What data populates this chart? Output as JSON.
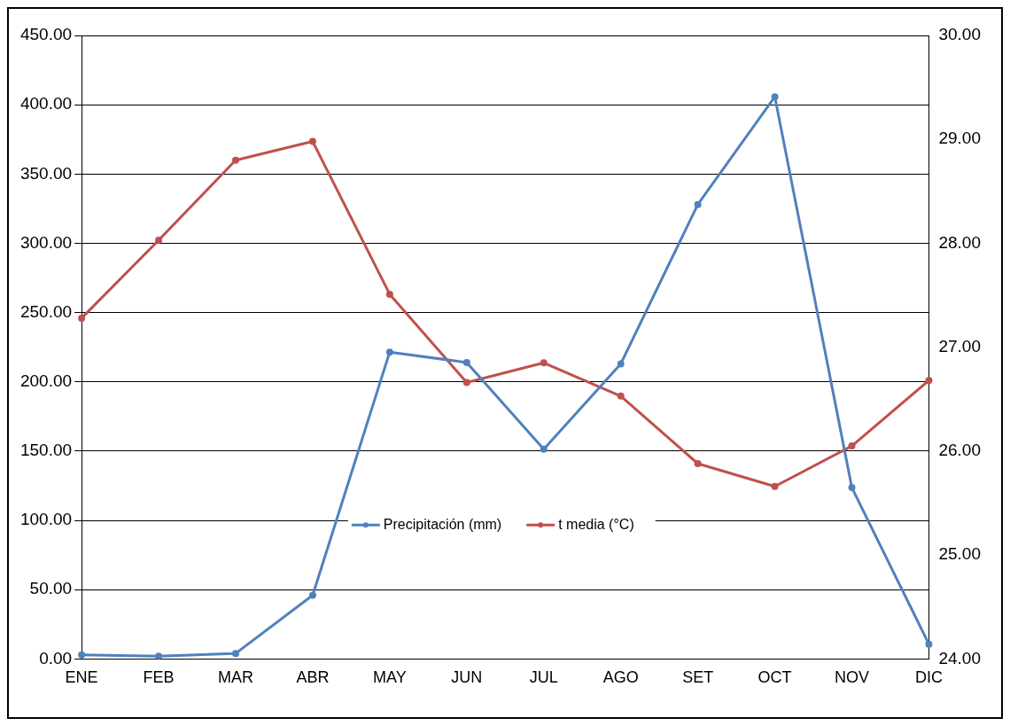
{
  "chart_data": {
    "type": "line",
    "categories": [
      "ENE",
      "FEB",
      "MAR",
      "ABR",
      "MAY",
      "JUN",
      "JUL",
      "AGO",
      "SET",
      "OCT",
      "NOV",
      "DIC"
    ],
    "series": [
      {
        "name": "Precipitación (mm)",
        "color": "#4f81bd",
        "values": [
          3,
          2,
          4,
          46,
          221.5,
          214,
          151.4,
          213,
          328,
          405.7,
          123.7,
          10.7
        ]
      },
      {
        "name": "t media (°C)",
        "color": "#c0504d",
        "axis": "y2",
        "values": [
          27.28,
          28.03,
          28.8,
          28.98,
          27.51,
          26.66,
          26.85,
          26.53,
          25.88,
          25.66,
          26.05,
          26.68
        ]
      }
    ],
    "ylim": [
      0,
      450
    ],
    "yticks": [
      {
        "value": 0,
        "label": "0.00"
      },
      {
        "value": 50,
        "label": "50.00"
      },
      {
        "value": 100,
        "label": "100.00"
      },
      {
        "value": 150,
        "label": "150.00"
      },
      {
        "value": 200,
        "label": "200.00"
      },
      {
        "value": 250,
        "label": "250.00"
      },
      {
        "value": 300,
        "label": "300.00"
      },
      {
        "value": 350,
        "label": "350.00"
      },
      {
        "value": 400,
        "label": "400.00"
      },
      {
        "value": 450,
        "label": "450.00"
      }
    ],
    "y2lim": [
      24,
      30
    ],
    "y2ticks": [
      {
        "value": 24,
        "label": "24.00"
      },
      {
        "value": 25,
        "label": "25.00"
      },
      {
        "value": 26,
        "label": "26.00"
      },
      {
        "value": 27,
        "label": "27.00"
      },
      {
        "value": 28,
        "label": "28.00"
      },
      {
        "value": 29,
        "label": "29.00"
      },
      {
        "value": 30,
        "label": "30.00"
      }
    ],
    "grid": "y",
    "legend": "center",
    "marker": "circle",
    "line_style": "solid"
  }
}
